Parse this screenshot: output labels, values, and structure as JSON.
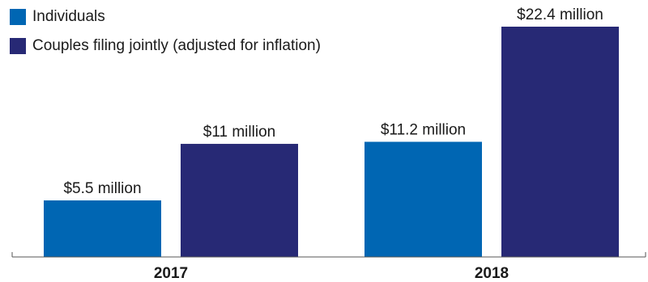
{
  "chart_data": {
    "type": "bar",
    "title": "",
    "xlabel": "",
    "ylabel": "",
    "categories": [
      "2017",
      "2018"
    ],
    "series": [
      {
        "name": "Individuals",
        "color": "#0066b3",
        "values": [
          5.5,
          11.2
        ],
        "labels": [
          "$5.5 million",
          "$11.2 million"
        ]
      },
      {
        "name": "Couples filing jointly (adjusted for inflation)",
        "color": "#272975",
        "values": [
          11,
          22.4
        ],
        "labels": [
          "$11 million",
          "$22.4 million"
        ]
      }
    ],
    "ylim": [
      0,
      22.4
    ],
    "grid": false,
    "legend_position": "top-left"
  }
}
